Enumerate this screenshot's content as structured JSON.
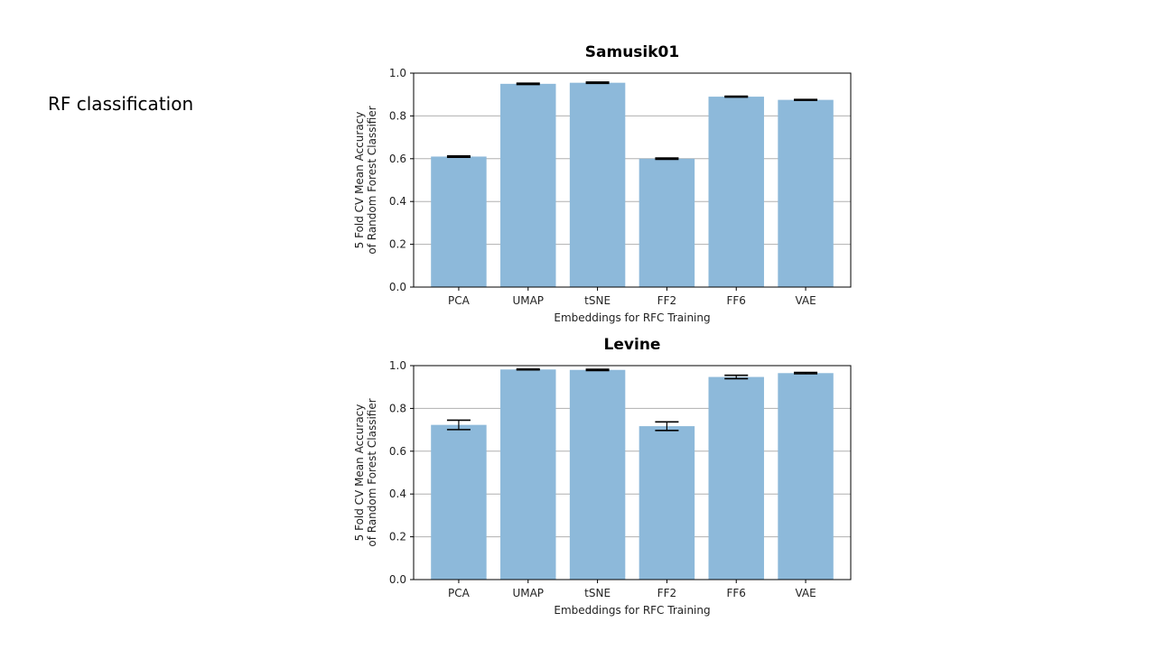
{
  "slide": {
    "title": "RF classification"
  },
  "chart_data": [
    {
      "type": "bar",
      "title": "Samusik01",
      "xlabel": "Embeddings for RFC Training",
      "ylabel_lines": [
        "5 Fold CV Mean Accuracy",
        "of Random Forest Classifier"
      ],
      "categories": [
        "PCA",
        "UMAP",
        "tSNE",
        "FF2",
        "FF6",
        "VAE"
      ],
      "values": [
        0.61,
        0.95,
        0.955,
        0.6,
        0.89,
        0.875
      ],
      "errors": [
        0.003,
        0.003,
        0.003,
        0.003,
        0.002,
        0.002
      ],
      "ylim": [
        0,
        1.0
      ],
      "yticks": [
        "0.0",
        "0.2",
        "0.4",
        "0.6",
        "0.8",
        "1.0"
      ],
      "grid": true,
      "color": "#8db9da"
    },
    {
      "type": "bar",
      "title": "Levine",
      "xlabel": "Embeddings for RFC Training",
      "ylabel_lines": [
        "5 Fold CV Mean Accuracy",
        "of Random Forest Classifier"
      ],
      "categories": [
        "PCA",
        "UMAP",
        "tSNE",
        "FF2",
        "FF6",
        "VAE"
      ],
      "values": [
        0.723,
        0.982,
        0.98,
        0.717,
        0.947,
        0.965
      ],
      "errors": [
        0.022,
        0.002,
        0.003,
        0.02,
        0.008,
        0.003
      ],
      "ylim": [
        0,
        1.0
      ],
      "yticks": [
        "0.0",
        "0.2",
        "0.4",
        "0.6",
        "0.8",
        "1.0"
      ],
      "grid": true,
      "color": "#8db9da"
    }
  ]
}
